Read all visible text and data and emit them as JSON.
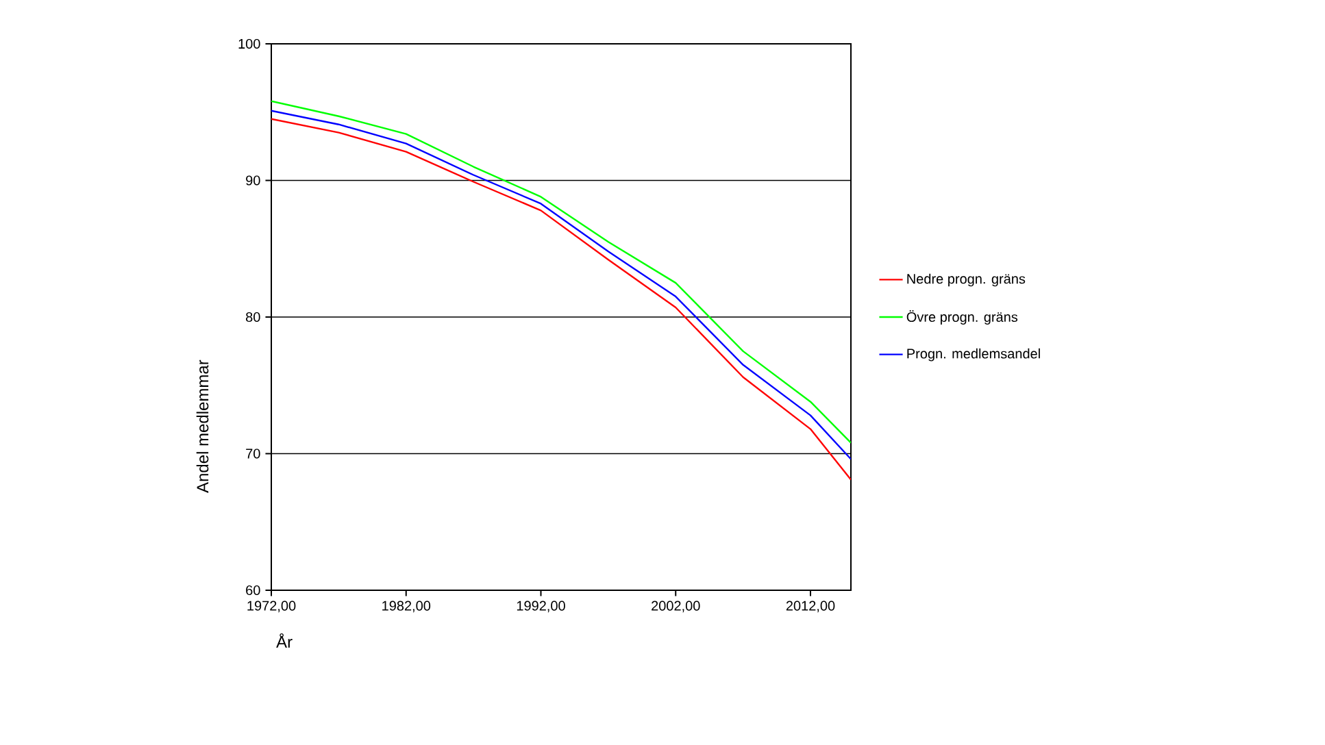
{
  "chart_data": {
    "type": "line",
    "xlabel": "År",
    "ylabel": "Andel medlemmar",
    "x": [
      1972,
      1977,
      1982,
      1987,
      1992,
      1997,
      2002,
      2007,
      2012,
      2015
    ],
    "series": [
      {
        "name": "Nedre progn. gräns",
        "color": "#ff0000",
        "values": [
          94.5,
          93.5,
          92.1,
          89.9,
          87.8,
          84.2,
          80.7,
          75.6,
          71.8,
          68.1
        ]
      },
      {
        "name": "Övre progn. gräns",
        "color": "#00ff00",
        "values": [
          95.8,
          94.7,
          93.4,
          91.0,
          88.8,
          85.5,
          82.5,
          77.5,
          73.8,
          70.8
        ]
      },
      {
        "name": "Progn. medlemsandel",
        "color": "#0000ff",
        "values": [
          95.1,
          94.1,
          92.7,
          90.4,
          88.3,
          84.8,
          81.5,
          76.5,
          72.8,
          69.6
        ]
      }
    ],
    "xlim": [
      1972,
      2015
    ],
    "xticks": [
      {
        "value": 1972,
        "label": "1972,00"
      },
      {
        "value": 1982,
        "label": "1982,00"
      },
      {
        "value": 1992,
        "label": "1992,00"
      },
      {
        "value": 2002,
        "label": "2002,00"
      },
      {
        "value": 2012,
        "label": "2012,00"
      }
    ],
    "ylim": [
      60,
      100
    ],
    "yticks": [
      60,
      70,
      80,
      90,
      100
    ],
    "grid": "y",
    "legend": "right",
    "marker": "none",
    "line_style": "solid"
  }
}
